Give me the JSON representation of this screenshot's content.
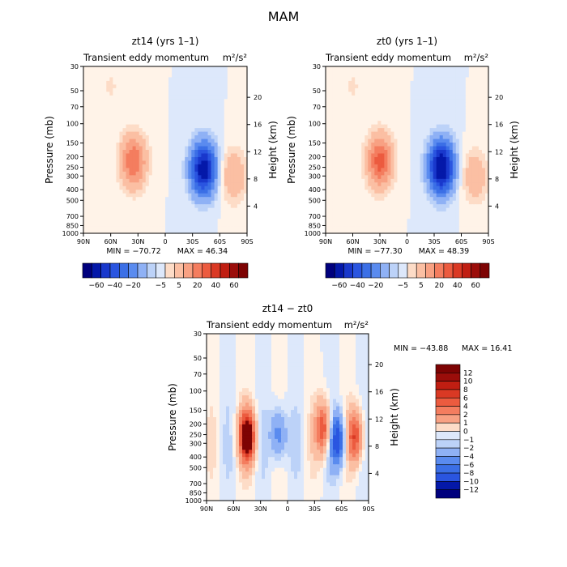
{
  "figure": {
    "title": "MAM",
    "colors": {
      "div_palette": [
        "#00007d",
        "#0418a9",
        "#1938cc",
        "#2a55e0",
        "#3b6fe6",
        "#5a8bef",
        "#8fb1f5",
        "#bcd2f8",
        "#dde8fb",
        "#fff3e8",
        "#fddcc7",
        "#fbbfa3",
        "#f8a183",
        "#f47d5f",
        "#ec5b3f",
        "#da3924",
        "#c01e12",
        "#9b0d0a",
        "#7d0303"
      ]
    }
  },
  "chart_data": [
    {
      "type": "contour",
      "panel": "zt14",
      "title": "zt14 (yrs 1–1)",
      "left_label": "Transient eddy momentum",
      "right_label": "m²/s²",
      "xlabel": "",
      "ylabel": "Pressure (mb)",
      "y2label": "Height (km)",
      "x_ticks": [
        "90N",
        "60N",
        "30N",
        "0",
        "30S",
        "60S",
        "90S"
      ],
      "x_values": [
        90,
        60,
        30,
        0,
        -30,
        -60,
        -90
      ],
      "y_ticks": [
        30,
        50,
        70,
        100,
        150,
        200,
        250,
        300,
        400,
        500,
        700,
        850,
        1000
      ],
      "y2_ticks": [
        4,
        8,
        12,
        16,
        20
      ],
      "ylim": [
        1000,
        30
      ],
      "min_text": "MIN = −70.72",
      "max_text": "MAX =  46.34",
      "min": -70.72,
      "max": 46.34,
      "colorbar": {
        "orientation": "horizontal",
        "labels": [
          "−60",
          "−40",
          "−20",
          "−5",
          "5",
          "20",
          "40",
          "60"
        ]
      },
      "features": [
        {
          "lat": 35,
          "p": 220,
          "amp": 40,
          "kind": "max"
        },
        {
          "lat": -42,
          "p": 260,
          "amp": -70,
          "kind": "min"
        },
        {
          "lat": -75,
          "p": 300,
          "amp": 20,
          "kind": "max"
        }
      ]
    },
    {
      "type": "contour",
      "panel": "zt0",
      "title": "zt0 (yrs 1–1)",
      "left_label": "Transient eddy momentum",
      "right_label": "m²/s²",
      "xlabel": "",
      "ylabel": "Pressure (mb)",
      "y2label": "Height (km)",
      "x_ticks": [
        "90N",
        "60N",
        "30N",
        "0",
        "30S",
        "60S",
        "90S"
      ],
      "x_values": [
        90,
        60,
        30,
        0,
        -30,
        -60,
        -90
      ],
      "y_ticks": [
        30,
        50,
        70,
        100,
        150,
        200,
        250,
        300,
        400,
        500,
        700,
        850,
        1000
      ],
      "y2_ticks": [
        4,
        8,
        12,
        16,
        20
      ],
      "ylim": [
        1000,
        30
      ],
      "min_text": "MIN = −77.30",
      "max_text": "MAX =  48.39",
      "min": -77.3,
      "max": 48.39,
      "colorbar": {
        "orientation": "horizontal",
        "labels": [
          "−60",
          "−40",
          "−20",
          "−5",
          "5",
          "20",
          "40",
          "60"
        ]
      },
      "features": [
        {
          "lat": 30,
          "p": 220,
          "amp": 45,
          "kind": "max"
        },
        {
          "lat": -38,
          "p": 250,
          "amp": -77,
          "kind": "min"
        },
        {
          "lat": -75,
          "p": 300,
          "amp": 18,
          "kind": "max"
        }
      ]
    },
    {
      "type": "contour",
      "panel": "diff",
      "title": "zt14 − zt0",
      "left_label": "Transient eddy momentum",
      "right_label": "m²/s²",
      "xlabel": "",
      "ylabel": "Pressure (mb)",
      "y2label": "Height (km)",
      "x_ticks": [
        "90N",
        "60N",
        "30N",
        "0",
        "30S",
        "60S",
        "90S"
      ],
      "x_values": [
        90,
        60,
        30,
        0,
        -30,
        -60,
        -90
      ],
      "y_ticks": [
        30,
        50,
        70,
        100,
        150,
        200,
        250,
        300,
        400,
        500,
        700,
        850,
        1000
      ],
      "y2_ticks": [
        4,
        8,
        12,
        16,
        20
      ],
      "ylim": [
        1000,
        30
      ],
      "min_text": "MIN = −43.88",
      "max_text": "MAX =  16.41",
      "min": -43.88,
      "max": 16.41,
      "colorbar": {
        "orientation": "vertical",
        "labels": [
          "12",
          "10",
          "8",
          "6",
          "4",
          "2",
          "1",
          "0",
          "−1",
          "−2",
          "−4",
          "−6",
          "−8",
          "−10",
          "−12"
        ]
      },
      "features": [
        {
          "lat": 45,
          "p": 260,
          "amp": 16,
          "kind": "max"
        },
        {
          "lat": 10,
          "p": 250,
          "amp": -6,
          "kind": "min"
        },
        {
          "lat": -40,
          "p": 220,
          "amp": 10,
          "kind": "max"
        },
        {
          "lat": -55,
          "p": 280,
          "amp": -10,
          "kind": "min"
        },
        {
          "lat": -75,
          "p": 260,
          "amp": 10,
          "kind": "max"
        }
      ]
    }
  ]
}
